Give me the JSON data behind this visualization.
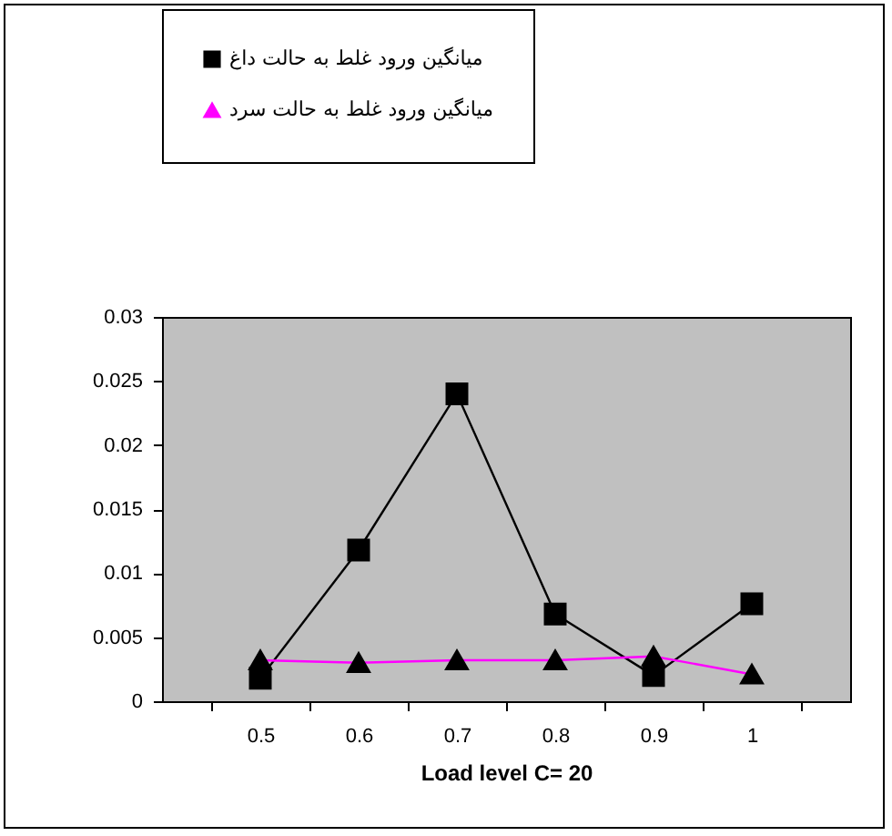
{
  "chart_data": {
    "type": "line",
    "xlabel": "Load level C= 20",
    "categories": [
      "0.5",
      "0.6",
      "0.7",
      "0.8",
      "0.9",
      "1"
    ],
    "series": [
      {
        "name": "میانگین ورود غلط به حالت داغ",
        "color": "#000000",
        "marker": "square",
        "values": [
          0.0018,
          0.0118,
          0.024,
          0.0068,
          0.002,
          0.0076
        ]
      },
      {
        "name": "میانگین ورود غلط به حالت سرد",
        "color": "#ff00ff",
        "marker": "triangle",
        "values": [
          0.0032,
          0.003,
          0.0032,
          0.0032,
          0.0035,
          0.0021
        ]
      }
    ],
    "ylim": [
      0,
      0.03
    ],
    "yticks": [
      0,
      0.005,
      0.01,
      0.015,
      0.02,
      0.025,
      0.03
    ],
    "grid": false,
    "legend": "top"
  }
}
